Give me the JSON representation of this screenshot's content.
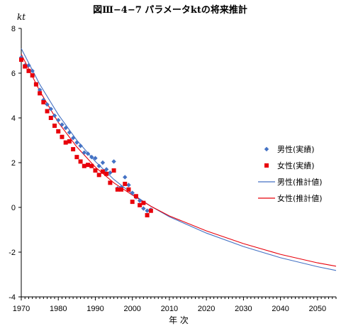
{
  "chart_data": {
    "type": "scatter+line",
    "title": "図Ⅲ−4−7 パラメータktの将来推計",
    "ylabel": "kt",
    "xlabel": "年 次",
    "xlim": [
      1970,
      2055
    ],
    "ylim": [
      -4,
      8
    ],
    "x_ticks": [
      "1970",
      "1980",
      "1990",
      "2000",
      "2010",
      "2020",
      "2030",
      "2040",
      "2050"
    ],
    "y_ticks": [
      "8",
      "6",
      "4",
      "2",
      "0",
      "-2",
      "-4"
    ],
    "grid": false,
    "legend_position": "right",
    "series": [
      {
        "name": "男性(実績)",
        "kind": "scatter",
        "marker": "diamond",
        "color": "#4472C4",
        "points": [
          [
            1970,
            6.7
          ],
          [
            1971,
            6.35
          ],
          [
            1972,
            6.35
          ],
          [
            1973,
            6.1
          ],
          [
            1974,
            5.5
          ],
          [
            1975,
            5.25
          ],
          [
            1976,
            4.8
          ],
          [
            1977,
            4.6
          ],
          [
            1978,
            4.4
          ],
          [
            1979,
            4.1
          ],
          [
            1980,
            3.9
          ],
          [
            1981,
            3.7
          ],
          [
            1982,
            3.55
          ],
          [
            1983,
            3.35
          ],
          [
            1984,
            3.1
          ],
          [
            1985,
            2.9
          ],
          [
            1986,
            2.75
          ],
          [
            1987,
            2.45
          ],
          [
            1988,
            2.4
          ],
          [
            1989,
            2.25
          ],
          [
            1990,
            2.2
          ],
          [
            1991,
            1.85
          ],
          [
            1992,
            2.0
          ],
          [
            1993,
            1.7
          ],
          [
            1994,
            1.55
          ],
          [
            1995,
            2.05
          ],
          [
            1996,
            0.85
          ],
          [
            1997,
            0.9
          ],
          [
            1998,
            1.35
          ],
          [
            1999,
            1.0
          ],
          [
            2000,
            0.65
          ],
          [
            2001,
            0.45
          ],
          [
            2002,
            0.3
          ],
          [
            2003,
            -0.05
          ],
          [
            2004,
            -0.15
          ],
          [
            2005,
            -0.1
          ]
        ]
      },
      {
        "name": "女性(実績)",
        "kind": "scatter",
        "marker": "square",
        "color": "#E8000B",
        "points": [
          [
            1970,
            6.6
          ],
          [
            1971,
            6.3
          ],
          [
            1972,
            6.1
          ],
          [
            1973,
            5.9
          ],
          [
            1974,
            5.5
          ],
          [
            1975,
            5.1
          ],
          [
            1976,
            4.7
          ],
          [
            1977,
            4.3
          ],
          [
            1978,
            4.0
          ],
          [
            1979,
            3.65
          ],
          [
            1980,
            3.4
          ],
          [
            1981,
            3.15
          ],
          [
            1982,
            2.9
          ],
          [
            1983,
            2.95
          ],
          [
            1984,
            2.6
          ],
          [
            1985,
            2.25
          ],
          [
            1986,
            2.05
          ],
          [
            1987,
            1.85
          ],
          [
            1988,
            1.9
          ],
          [
            1989,
            1.85
          ],
          [
            1990,
            1.65
          ],
          [
            1991,
            1.45
          ],
          [
            1992,
            1.6
          ],
          [
            1993,
            1.5
          ],
          [
            1994,
            1.1
          ],
          [
            1995,
            1.65
          ],
          [
            1996,
            0.8
          ],
          [
            1997,
            0.8
          ],
          [
            1998,
            1.05
          ],
          [
            1999,
            0.8
          ],
          [
            2000,
            0.25
          ],
          [
            2001,
            0.5
          ],
          [
            2002,
            0.1
          ],
          [
            2003,
            0.2
          ],
          [
            2004,
            -0.35
          ],
          [
            2005,
            -0.15
          ]
        ]
      },
      {
        "name": "男性(推計値)",
        "kind": "line",
        "color": "#4472C4",
        "points": [
          [
            1970,
            7.1
          ],
          [
            1975,
            5.5
          ],
          [
            1980,
            4.15
          ],
          [
            1985,
            3.0
          ],
          [
            1990,
            2.05
          ],
          [
            1995,
            1.25
          ],
          [
            2000,
            0.6
          ],
          [
            2005,
            0.05
          ],
          [
            2010,
            -0.42
          ],
          [
            2020,
            -1.15
          ],
          [
            2030,
            -1.75
          ],
          [
            2040,
            -2.25
          ],
          [
            2050,
            -2.65
          ],
          [
            2055,
            -2.82
          ]
        ]
      },
      {
        "name": "女性(推計値)",
        "kind": "line",
        "color": "#E8000B",
        "points": [
          [
            1970,
            6.85
          ],
          [
            1975,
            5.2
          ],
          [
            1980,
            3.8
          ],
          [
            1985,
            2.7
          ],
          [
            1990,
            1.8
          ],
          [
            1995,
            1.1
          ],
          [
            2000,
            0.55
          ],
          [
            2005,
            0.05
          ],
          [
            2010,
            -0.38
          ],
          [
            2020,
            -1.05
          ],
          [
            2030,
            -1.62
          ],
          [
            2040,
            -2.1
          ],
          [
            2050,
            -2.48
          ],
          [
            2055,
            -2.63
          ]
        ]
      }
    ]
  }
}
